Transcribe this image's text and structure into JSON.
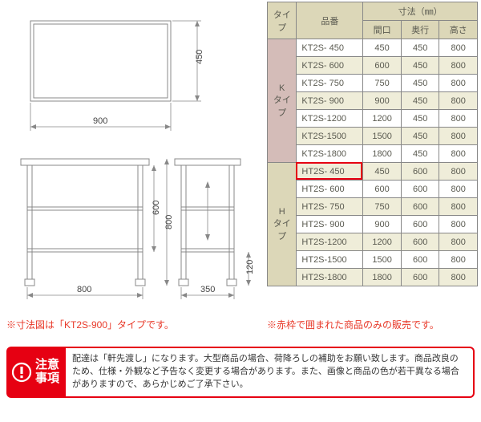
{
  "diagram": {
    "top_view": {
      "width_label": "900",
      "depth_label": "450"
    },
    "front_view": {
      "width_label": "800",
      "height_label": "800",
      "mid_label": "600"
    },
    "side_view": {
      "depth_label": "350",
      "foot_label": "120"
    },
    "stroke": "#888888"
  },
  "notes": {
    "left": "※寸法図は「KT2S-900」タイプです。",
    "right": "※赤枠で囲まれた商品のみの販売です。"
  },
  "table": {
    "headers": {
      "type": "タイプ",
      "code": "品番",
      "dims": "寸法（㎜）",
      "w": "間口",
      "d": "奥行",
      "h": "高さ"
    },
    "groups": [
      {
        "type_label": "K\nタイプ",
        "type_bg": "#d4bcb8",
        "rows": [
          {
            "code": "KT2S-  450",
            "w": "450",
            "d": "450",
            "h": "800",
            "alt": false
          },
          {
            "code": "KT2S-  600",
            "w": "600",
            "d": "450",
            "h": "800",
            "alt": true
          },
          {
            "code": "KT2S-  750",
            "w": "750",
            "d": "450",
            "h": "800",
            "alt": false
          },
          {
            "code": "KT2S-  900",
            "w": "900",
            "d": "450",
            "h": "800",
            "alt": true
          },
          {
            "code": "KT2S-1200",
            "w": "1200",
            "d": "450",
            "h": "800",
            "alt": false
          },
          {
            "code": "KT2S-1500",
            "w": "1500",
            "d": "450",
            "h": "800",
            "alt": true
          },
          {
            "code": "KT2S-1800",
            "w": "1800",
            "d": "450",
            "h": "800",
            "alt": false
          }
        ]
      },
      {
        "type_label": "H\nタイプ",
        "type_bg": "#dcd7b8",
        "rows": [
          {
            "code": "HT2S-  450",
            "w": "450",
            "d": "600",
            "h": "800",
            "alt": true,
            "highlight": true
          },
          {
            "code": "HT2S-  600",
            "w": "600",
            "d": "600",
            "h": "800",
            "alt": false
          },
          {
            "code": "HT2S-  750",
            "w": "750",
            "d": "600",
            "h": "800",
            "alt": true
          },
          {
            "code": "HT2S-  900",
            "w": "900",
            "d": "600",
            "h": "800",
            "alt": false
          },
          {
            "code": "HT2S-1200",
            "w": "1200",
            "d": "600",
            "h": "800",
            "alt": true
          },
          {
            "code": "HT2S-1500",
            "w": "1500",
            "d": "600",
            "h": "800",
            "alt": false
          },
          {
            "code": "HT2S-1800",
            "w": "1800",
            "d": "600",
            "h": "800",
            "alt": true
          }
        ]
      }
    ],
    "colors": {
      "header_bg": "#dcd7b8",
      "alt_bg": "#efedd9",
      "border": "#888888",
      "text": "#5a5a50",
      "highlight_border": "#e60012"
    }
  },
  "caution": {
    "badge": "注意\n事項",
    "body": "配達は「軒先渡し」になります。大型商品の場合、荷降ろしの補助をお願い致します。商品改良のため、仕様・外観など予告なく変更する場合があります。また、画像と商品の色が若干異なる場合がありますので、あらかじめご了承下さい。",
    "colors": {
      "brand": "#e60012",
      "text": "#333333"
    }
  }
}
